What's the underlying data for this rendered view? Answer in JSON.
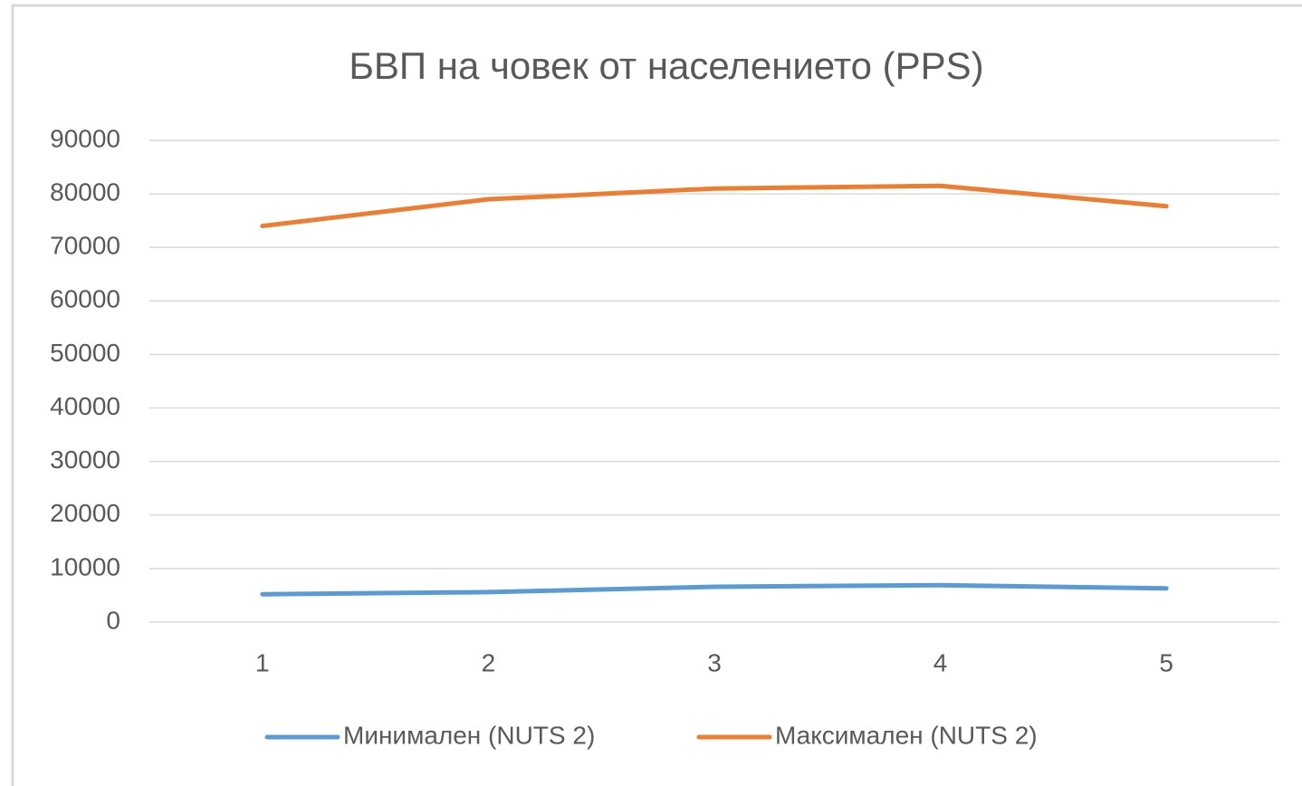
{
  "chart_data": {
    "type": "line",
    "title": "БВП на човек от населението (PPS)",
    "categories": [
      "1",
      "2",
      "3",
      "4",
      "5"
    ],
    "series": [
      {
        "name": "Минимален (NUTS 2)",
        "color": "#5b9bd5",
        "values": [
          5200,
          5600,
          6600,
          6900,
          6300
        ]
      },
      {
        "name": "Максимален (NUTS 2)",
        "color": "#ed7d31",
        "values": [
          74000,
          79000,
          81000,
          81500,
          77700
        ]
      }
    ],
    "ylim": [
      0,
      90000
    ],
    "yticks": [
      0,
      10000,
      20000,
      30000,
      40000,
      50000,
      60000,
      70000,
      80000,
      90000
    ],
    "grid": true,
    "legend": "bottom"
  }
}
